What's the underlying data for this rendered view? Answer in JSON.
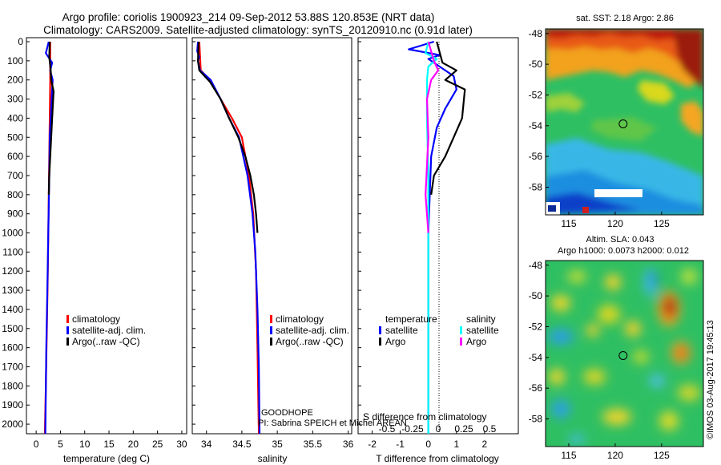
{
  "title_line1": "Argo profile: coriolis 1900923_214 09-Sep-2012 53.88S 120.853E (NRT data)",
  "title_line2": "Climatology: CARS2009. Satellite-adjusted climatology: synTS_20120910.nc (0.91d later)",
  "project_label": "GOODHOPE",
  "pi_label": "PI: Sabrina SPEICH et Michel AREAN",
  "credit": "©IMOS 03-Aug-2017 19:45:13",
  "colors": {
    "climatology": "#ff0000",
    "satellite": "#0000ff",
    "argo": "#000000",
    "sal_satellite": "#00ffff",
    "sal_argo": "#ff00ff"
  },
  "chart_data": [
    {
      "type": "line",
      "xlabel": "temperature (deg C)",
      "ylabel": "",
      "xlim": [
        -2,
        31
      ],
      "ylim": [
        2050,
        0
      ],
      "xticks": [
        "0",
        "5",
        "10",
        "15",
        "20",
        "25",
        "30"
      ],
      "yticks": [
        "0",
        "100",
        "200",
        "300",
        "400",
        "500",
        "600",
        "700",
        "800",
        "900",
        "1000",
        "1100",
        "1200",
        "1300",
        "1400",
        "1500",
        "1600",
        "1700",
        "1800",
        "1900",
        "2000"
      ],
      "legend": [
        "climatology",
        "satellite-adj. clim.",
        "Argo(..raw -QC)"
      ],
      "series": [
        {
          "name": "climatology",
          "color": "#ff0000",
          "x": [
            2.9,
            2.9,
            2.9,
            2.8,
            2.7,
            2.6,
            2.5,
            2.4,
            2.2,
            2.0,
            1.8
          ],
          "y": [
            0,
            100,
            200,
            400,
            600,
            800,
            1000,
            1200,
            1500,
            1800,
            2050
          ]
        },
        {
          "name": "satellite-adj. clim.",
          "color": "#0000ff",
          "x": [
            2.6,
            2.0,
            3.3,
            2.9,
            3.4,
            3.2,
            2.8,
            2.7,
            2.5,
            2.3,
            2.1,
            1.9
          ],
          "y": [
            0,
            60,
            110,
            150,
            200,
            300,
            500,
            700,
            1000,
            1300,
            1600,
            2050
          ]
        },
        {
          "name": "Argo(..raw -QC)",
          "color": "#000000",
          "x": [
            2.8,
            2.7,
            3.0,
            3.1,
            3.6,
            3.3,
            3.1,
            2.9,
            2.7,
            2.6
          ],
          "y": [
            0,
            80,
            150,
            200,
            260,
            400,
            500,
            600,
            700,
            800
          ]
        }
      ]
    },
    {
      "type": "line",
      "xlabel": "salinity",
      "ylabel": "",
      "xlim": [
        33.8,
        36.05
      ],
      "ylim": [
        2050,
        0
      ],
      "xticks": [
        "34",
        "34.5",
        "35",
        "35.5",
        "36"
      ],
      "legend": [
        "climatology",
        "satellite-adj. clim.",
        "Argo(..raw -QC)"
      ],
      "series": [
        {
          "name": "climatology",
          "color": "#ff0000",
          "x": [
            33.9,
            33.92,
            34.05,
            34.2,
            34.36,
            34.5,
            34.6,
            34.66,
            34.7,
            34.72,
            34.74
          ],
          "y": [
            0,
            150,
            200,
            300,
            400,
            500,
            700,
            900,
            1200,
            1600,
            2050
          ]
        },
        {
          "name": "satellite-adj. clim.",
          "color": "#0000ff",
          "x": [
            33.88,
            33.87,
            33.9,
            33.88,
            33.91,
            34.06,
            34.2,
            34.32,
            34.46,
            34.58,
            34.65,
            34.69,
            34.72,
            34.74,
            34.75
          ],
          "y": [
            0,
            50,
            80,
            100,
            150,
            200,
            300,
            400,
            500,
            700,
            900,
            1100,
            1400,
            1700,
            2050
          ]
        },
        {
          "name": "Argo(..raw -QC)",
          "color": "#000000",
          "x": [
            33.89,
            33.88,
            33.9,
            34.05,
            34.2,
            34.32,
            34.45,
            34.55,
            34.62,
            34.67,
            34.7,
            34.72
          ],
          "y": [
            0,
            100,
            150,
            210,
            300,
            400,
            500,
            600,
            700,
            800,
            900,
            1000
          ]
        }
      ]
    },
    {
      "type": "line",
      "xlabel": "T difference from climatology",
      "title": "S difference from climatology",
      "xlim": [
        -2.5,
        3.2
      ],
      "ylim": [
        2050,
        0
      ],
      "xticks": [
        "-2",
        "-1",
        "0",
        "1",
        "2"
      ],
      "secondary_xticks": [
        "-0.5",
        "-0.25",
        "0",
        "0.25",
        "0.5"
      ],
      "legend_headers": [
        "temperature",
        "salinity"
      ],
      "legend": [
        "satellite",
        "Argo",
        "satellite",
        "Argo"
      ],
      "series": [
        {
          "name": "temperature satellite",
          "color": "#0000ff",
          "x": [
            0.2,
            -0.7,
            0.4,
            0.0,
            0.3,
            0.9,
            1.0,
            0.6,
            0.3,
            0.1,
            0.0,
            0.0
          ],
          "y": [
            0,
            40,
            70,
            90,
            120,
            180,
            250,
            350,
            450,
            600,
            1000,
            2050
          ]
        },
        {
          "name": "temperature Argo",
          "color": "#000000",
          "x": [
            0.3,
            0.5,
            1.0,
            0.6,
            1.3,
            1.2,
            0.9,
            0.6,
            0.2,
            0.1
          ],
          "y": [
            0,
            110,
            150,
            200,
            250,
            400,
            500,
            600,
            700,
            800
          ]
        },
        {
          "name": "salinity satellite",
          "color": "#00ffff",
          "x": [
            0.0,
            -0.1,
            0.3,
            0.0,
            -0.05,
            -0.05,
            0.0,
            0.0,
            0.0
          ],
          "y": [
            0,
            60,
            90,
            130,
            200,
            400,
            700,
            1200,
            2050
          ]
        },
        {
          "name": "salinity Argo",
          "color": "#ff00ff",
          "x": [
            0.0,
            0.2,
            0.35,
            0.1,
            -0.05,
            0.0,
            -0.1,
            0.0
          ],
          "y": [
            0,
            100,
            150,
            200,
            300,
            500,
            800,
            1000
          ]
        }
      ]
    },
    {
      "type": "heatmap",
      "title": "sat. SST: 2.18 Argo: 2.86",
      "xticks": [
        "115",
        "120",
        "125"
      ],
      "yticks": [
        "-48",
        "-50",
        "-52",
        "-54",
        "-56",
        "-58"
      ],
      "xlim": [
        112.5,
        129.5
      ],
      "ylim": [
        -59.8,
        -47.7
      ],
      "marker": {
        "lon": 120.853,
        "lat": -53.88
      }
    },
    {
      "type": "heatmap",
      "title": "Altim. SLA: 0.043",
      "subtitle": "Argo h1000: 0.0073 h2000: 0.012",
      "xticks": [
        "115",
        "120",
        "125"
      ],
      "yticks": [
        "-48",
        "-50",
        "-52",
        "-54",
        "-56",
        "-58"
      ],
      "xlim": [
        112.5,
        129.5
      ],
      "ylim": [
        -59.8,
        -47.7
      ],
      "marker": {
        "lon": 120.853,
        "lat": -53.88
      }
    }
  ]
}
